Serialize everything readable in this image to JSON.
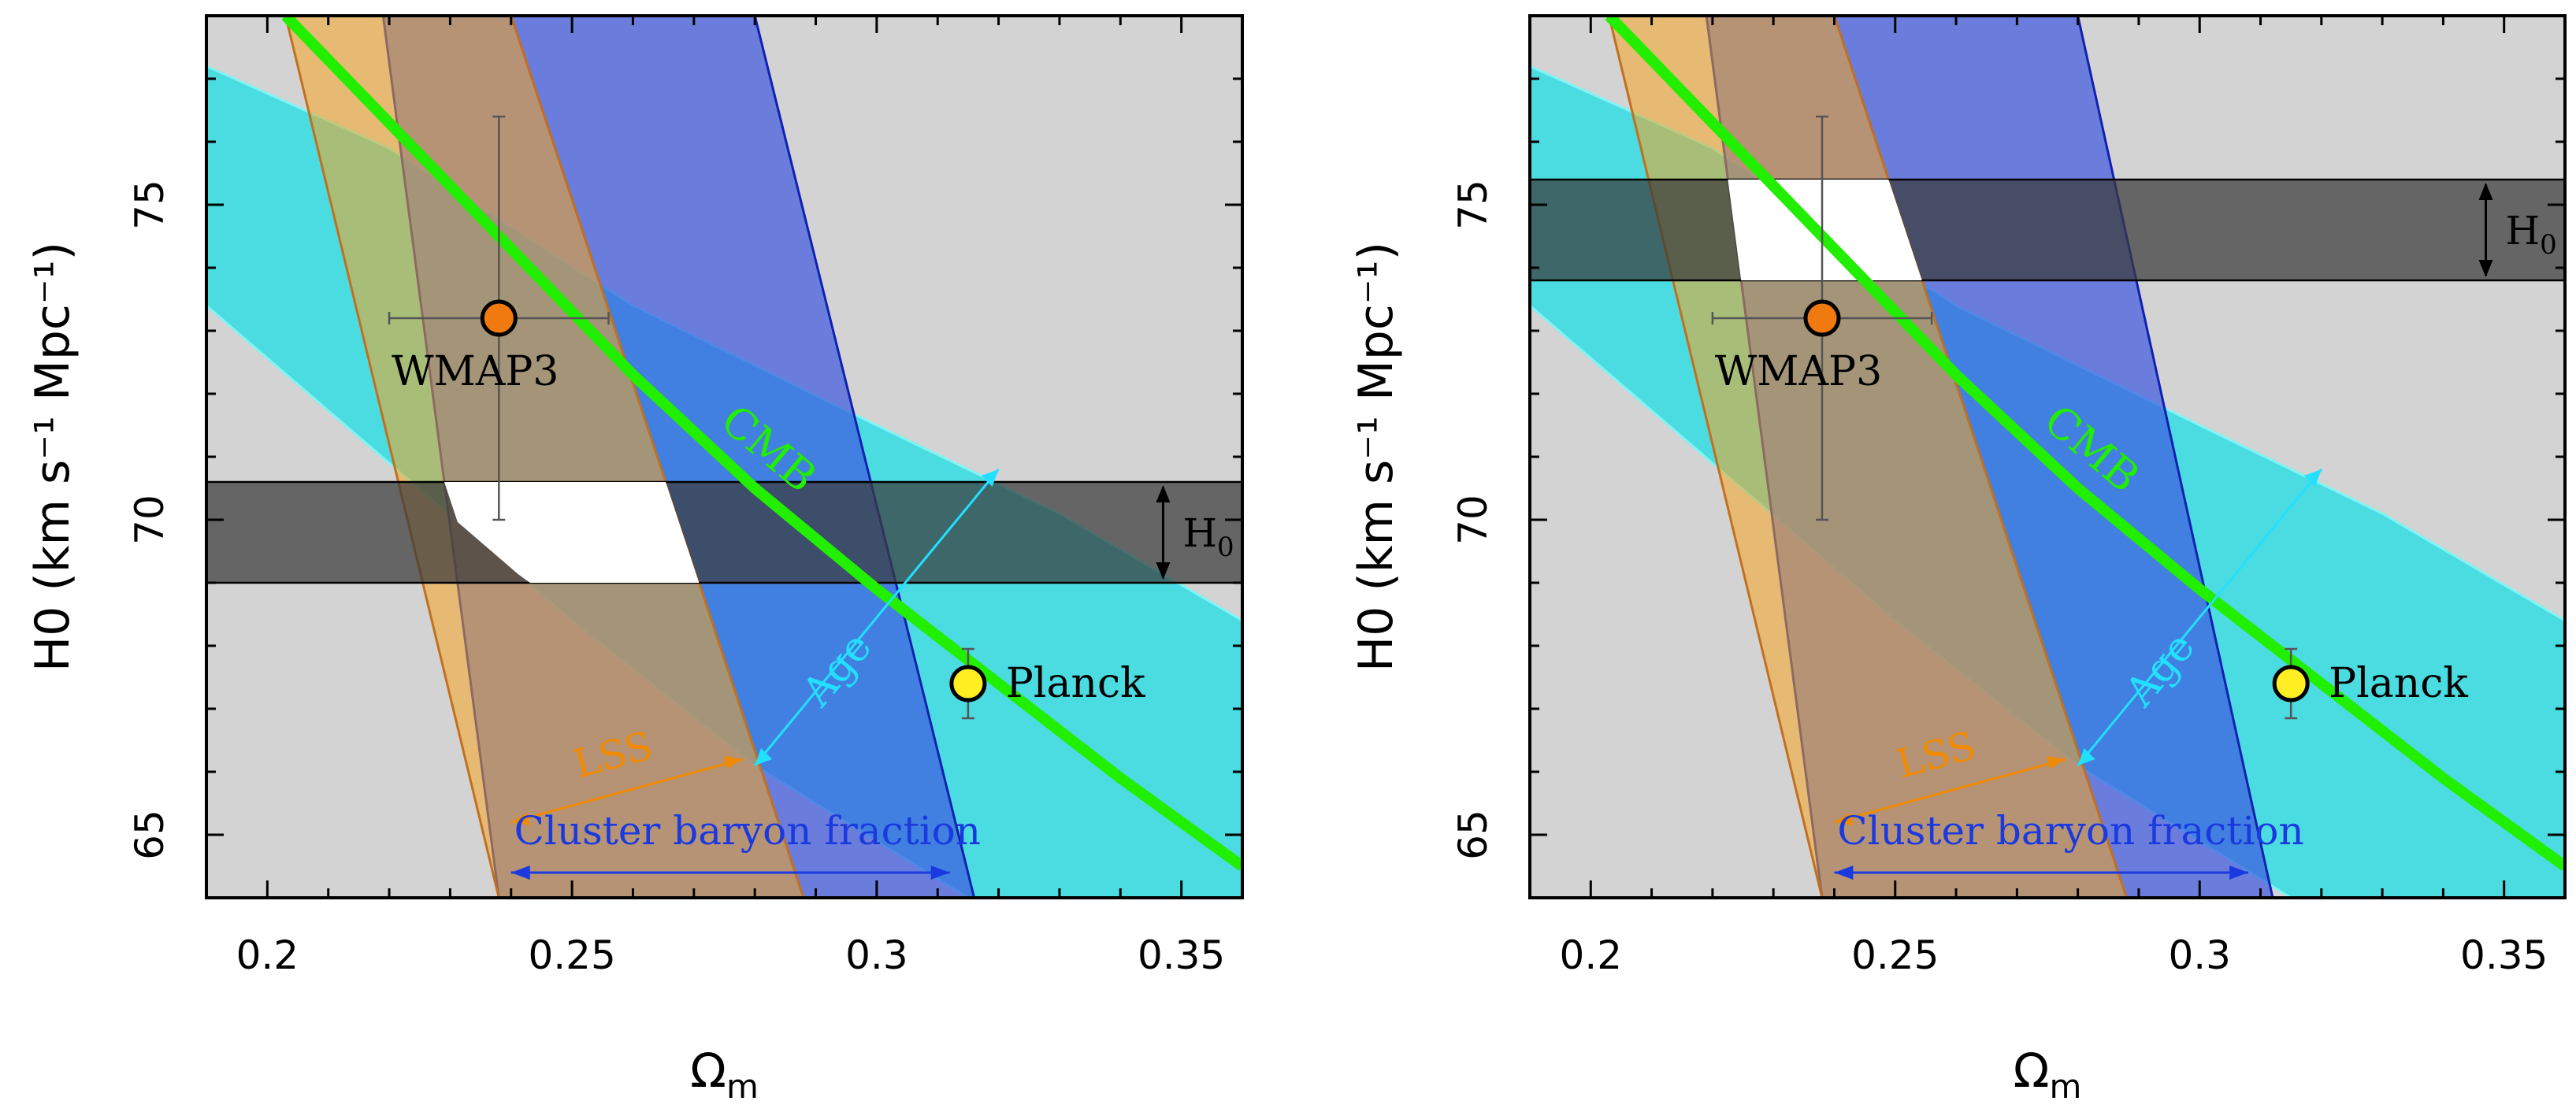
{
  "chart_data": [
    {
      "type": "area",
      "panel": "left",
      "xlabel": "Ωm",
      "ylabel": "H0 (km s⁻¹ Mpc⁻¹)",
      "xlim": [
        0.19,
        0.36
      ],
      "ylim": [
        64.0,
        78.0
      ],
      "xticks": [
        0.2,
        0.25,
        0.3,
        0.35
      ],
      "yticks": [
        65,
        70,
        75
      ],
      "h0_band": [
        69.0,
        70.6
      ],
      "h0_label": "H0",
      "bands": [
        {
          "name": "LSS",
          "color": "#f5a623",
          "left_bottom": 0.238,
          "left_top": 0.203,
          "right_bottom": 0.288,
          "right_top": 0.24
        },
        {
          "name": "Cluster baryon fraction",
          "color": "#3d59e0",
          "left_bottom": 0.238,
          "left_top": 0.219,
          "right_bottom": 0.316,
          "right_top": 0.28
        },
        {
          "name": "Age",
          "color": "#31dde3",
          "upper_curve": [
            [
              0.19,
              77.2
            ],
            [
              0.22,
              75.9
            ],
            [
              0.26,
              73.4
            ],
            [
              0.3,
              71.5
            ],
            [
              0.33,
              70.1
            ],
            [
              0.36,
              68.4
            ]
          ],
          "lower_curve": [
            [
              0.19,
              73.4
            ],
            [
              0.22,
              70.9
            ],
            [
              0.25,
              68.4
            ],
            [
              0.28,
              66.1
            ],
            [
              0.3,
              64.9
            ],
            [
              0.315,
              64.0
            ]
          ]
        }
      ],
      "cmb_curve": {
        "label": "CMB",
        "color": "#22ee00",
        "points": [
          [
            0.203,
            78.0
          ],
          [
            0.22,
            76.3
          ],
          [
            0.24,
            74.3
          ],
          [
            0.26,
            72.3
          ],
          [
            0.28,
            70.5
          ],
          [
            0.3,
            68.9
          ],
          [
            0.32,
            67.4
          ],
          [
            0.34,
            65.9
          ],
          [
            0.36,
            64.5
          ]
        ]
      },
      "points": [
        {
          "name": "WMAP3",
          "x": 0.238,
          "y": 73.2,
          "xerr": 0.018,
          "yerr": 3.2,
          "color": "#f07a10"
        },
        {
          "name": "Planck",
          "x": 0.315,
          "y": 67.4,
          "xerr": 0.002,
          "yerr": 0.55,
          "color": "#ffee22"
        }
      ],
      "annotations": [
        "CMB",
        "Age",
        "LSS",
        "Cluster baryon fraction",
        "H0"
      ]
    },
    {
      "type": "area",
      "panel": "right",
      "xlabel": "Ωm",
      "ylabel": "H0 (km s⁻¹ Mpc⁻¹)",
      "xlim": [
        0.19,
        0.36
      ],
      "ylim": [
        64.0,
        78.0
      ],
      "xticks": [
        0.2,
        0.25,
        0.3,
        0.35
      ],
      "yticks": [
        65,
        70,
        75
      ],
      "h0_band": [
        73.8,
        75.4
      ],
      "h0_label": "H0",
      "bands": [
        {
          "name": "LSS",
          "color": "#f5a623",
          "left_bottom": 0.238,
          "left_top": 0.203,
          "right_bottom": 0.288,
          "right_top": 0.24
        },
        {
          "name": "Cluster baryon fraction",
          "color": "#3d59e0",
          "left_bottom": 0.238,
          "left_top": 0.219,
          "right_bottom": 0.312,
          "right_top": 0.28
        },
        {
          "name": "Age",
          "color": "#31dde3",
          "upper_curve": [
            [
              0.19,
              77.2
            ],
            [
              0.22,
              75.9
            ],
            [
              0.26,
              73.4
            ],
            [
              0.3,
              71.5
            ],
            [
              0.33,
              70.1
            ],
            [
              0.36,
              68.4
            ]
          ],
          "lower_curve": [
            [
              0.19,
              73.4
            ],
            [
              0.22,
              70.9
            ],
            [
              0.25,
              68.4
            ],
            [
              0.28,
              66.1
            ],
            [
              0.3,
              64.9
            ],
            [
              0.315,
              64.0
            ]
          ]
        }
      ],
      "cmb_curve": {
        "label": "CMB",
        "color": "#22ee00",
        "points": [
          [
            0.203,
            78.0
          ],
          [
            0.22,
            76.3
          ],
          [
            0.24,
            74.3
          ],
          [
            0.26,
            72.3
          ],
          [
            0.28,
            70.5
          ],
          [
            0.3,
            68.9
          ],
          [
            0.32,
            67.4
          ],
          [
            0.34,
            65.9
          ],
          [
            0.36,
            64.5
          ]
        ]
      },
      "points": [
        {
          "name": "WMAP3",
          "x": 0.238,
          "y": 73.2,
          "xerr": 0.018,
          "yerr": 3.2,
          "color": "#f07a10"
        },
        {
          "name": "Planck",
          "x": 0.315,
          "y": 67.4,
          "xerr": 0.002,
          "yerr": 0.55,
          "color": "#ffee22"
        }
      ],
      "annotations": [
        "CMB",
        "Age",
        "LSS",
        "Cluster baryon fraction",
        "H0"
      ]
    }
  ]
}
